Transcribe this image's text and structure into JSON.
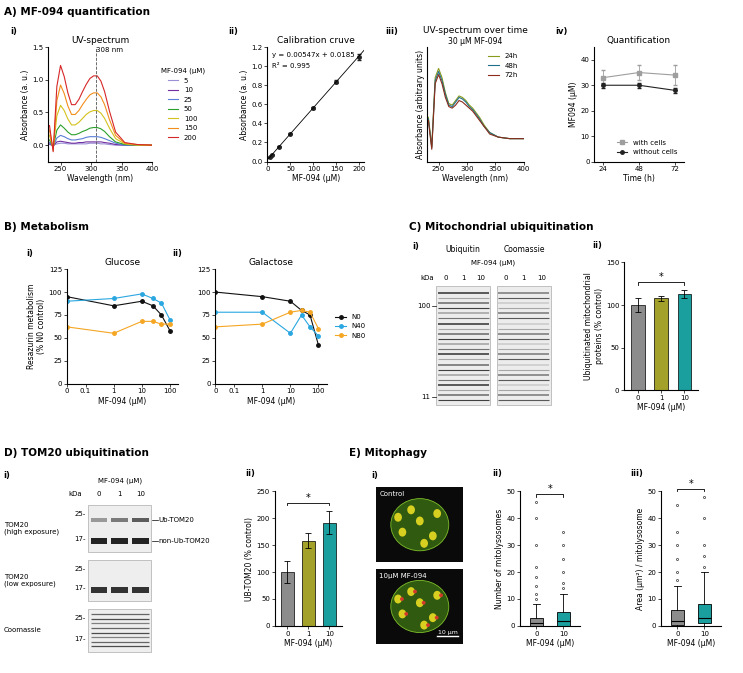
{
  "headings": [
    "A) MF-094 quantification",
    "B) Metabolism",
    "C) Mitochondrial ubiquitination",
    "D) TOM20 ubiquitination",
    "E) Mitophagy"
  ],
  "chart_data": [
    {
      "panel": "i)",
      "type": "line",
      "title": "UV-spectrum",
      "xlabel": "Wavelength (nm)",
      "ylabel": "Absorbance (a. u.)",
      "x": [
        232,
        238,
        244,
        250,
        256,
        262,
        268,
        274,
        280,
        286,
        292,
        298,
        304,
        310,
        316,
        322,
        330,
        340,
        355,
        375,
        400
      ],
      "xlim": [
        230,
        400
      ],
      "xticks": [
        250,
        300,
        350,
        400
      ],
      "ylim": [
        -0.25,
        1.5
      ],
      "yticks": [
        {
          "value": 0,
          "label": "0.0"
        },
        0.5,
        {
          "value": 1,
          "label": "1.0"
        },
        1.5
      ],
      "legend": "right",
      "legend_title": "MF-094 (µM)",
      "annotations": [
        {
          "x": 308,
          "text": "308 nm"
        }
      ],
      "series": [
        {
          "name": "5",
          "color": "#9b8fd6",
          "values": [
            0.01,
            0.0,
            0.02,
            0.03,
            0.03,
            0.02,
            0.02,
            0.02,
            0.02,
            0.02,
            0.02,
            0.03,
            0.03,
            0.03,
            0.02,
            0.02,
            0.01,
            0.0,
            0.0,
            0.0,
            0.0
          ]
        },
        {
          "name": "10",
          "color": "#7030a0",
          "values": [
            0.02,
            -0.01,
            0.05,
            0.06,
            0.05,
            0.04,
            0.03,
            0.03,
            0.04,
            0.04,
            0.05,
            0.05,
            0.05,
            0.05,
            0.05,
            0.04,
            0.03,
            0.01,
            0.0,
            0.0,
            0.0
          ]
        },
        {
          "name": "25",
          "color": "#5b7fd6",
          "values": [
            0.04,
            -0.02,
            0.11,
            0.15,
            0.13,
            0.1,
            0.08,
            0.08,
            0.09,
            0.1,
            0.12,
            0.13,
            0.13,
            0.13,
            0.12,
            0.1,
            0.07,
            0.03,
            0.0,
            0.0,
            0.0
          ]
        },
        {
          "name": "50",
          "color": "#2ca02c",
          "values": [
            0.08,
            -0.03,
            0.23,
            0.31,
            0.26,
            0.2,
            0.16,
            0.16,
            0.18,
            0.21,
            0.23,
            0.26,
            0.27,
            0.27,
            0.25,
            0.21,
            0.13,
            0.05,
            0.01,
            0.0,
            0.0
          ]
        },
        {
          "name": "100",
          "color": "#d4c21c",
          "values": [
            0.15,
            -0.05,
            0.45,
            0.61,
            0.53,
            0.4,
            0.31,
            0.31,
            0.35,
            0.41,
            0.47,
            0.51,
            0.53,
            0.53,
            0.49,
            0.41,
            0.26,
            0.1,
            0.02,
            0.0,
            0.0
          ]
        },
        {
          "name": "150",
          "color": "#f28e1c",
          "values": [
            0.23,
            -0.08,
            0.68,
            0.92,
            0.79,
            0.6,
            0.47,
            0.47,
            0.53,
            0.62,
            0.7,
            0.77,
            0.8,
            0.8,
            0.74,
            0.62,
            0.39,
            0.15,
            0.03,
            0.01,
            0.0
          ]
        },
        {
          "name": "200",
          "color": "#d62728",
          "values": [
            0.3,
            -0.1,
            0.9,
            1.22,
            1.05,
            0.8,
            0.62,
            0.62,
            0.7,
            0.82,
            0.93,
            1.02,
            1.06,
            1.06,
            0.98,
            0.82,
            0.52,
            0.2,
            0.04,
            0.01,
            0.0
          ]
        }
      ]
    },
    {
      "panel": "ii)",
      "type": "scatter",
      "title": "Calibration cruve",
      "xlabel": "MF-094 (µM)",
      "ylabel": "Absorbance (a. u.)",
      "x": [
        5,
        10,
        25,
        50,
        100,
        150,
        200
      ],
      "xlim": [
        0,
        210
      ],
      "xticks": [
        0,
        50,
        100,
        150,
        200
      ],
      "ylim": [
        0,
        1.2
      ],
      "yticks": [
        {
          "value": 0,
          "label": "0.0"
        },
        0.2,
        0.4,
        0.6,
        0.8,
        {
          "value": 1,
          "label": "1.0"
        },
        1.2
      ],
      "fit": {
        "slope": 0.00547,
        "intercept": 0.0185
      },
      "annotations": [
        {
          "text": "y = 0.00547x + 0.0185"
        },
        {
          "text": "R² = 0.995"
        }
      ],
      "series": [
        {
          "color": "#222222",
          "marker": "circle",
          "values": [
            0.046,
            0.073,
            0.155,
            0.292,
            0.566,
            0.839,
            1.1
          ],
          "errors": [
            0.002,
            0.003,
            0.005,
            0.006,
            0.01,
            0.012,
            0.03
          ]
        }
      ]
    },
    {
      "panel": "iii)",
      "type": "line",
      "title": "UV-spectrum over time",
      "subtitle": "30 µM MF-094",
      "xlabel": "Wavelength (nm)",
      "ylabel": "Absorbance (arbitrary units)",
      "tick_labels": "x",
      "x": [
        232,
        238,
        244,
        250,
        256,
        262,
        268,
        274,
        280,
        286,
        292,
        298,
        304,
        310,
        316,
        322,
        330,
        340,
        355,
        375,
        400
      ],
      "xlim": [
        230,
        400
      ],
      "xticks": [
        250,
        300,
        350,
        400
      ],
      "ylim": [
        -0.15,
        0.6
      ],
      "legend": "upper right",
      "series": [
        {
          "name": "24h",
          "color": "#8a9a1b",
          "values": [
            0.14,
            -0.05,
            0.4,
            0.46,
            0.4,
            0.3,
            0.23,
            0.22,
            0.25,
            0.28,
            0.27,
            0.25,
            0.22,
            0.2,
            0.17,
            0.14,
            0.09,
            0.04,
            0.01,
            0.0,
            0.0
          ]
        },
        {
          "name": "48h",
          "color": "#1f6f8b",
          "values": [
            0.13,
            -0.06,
            0.38,
            0.44,
            0.38,
            0.29,
            0.22,
            0.21,
            0.24,
            0.27,
            0.26,
            0.24,
            0.21,
            0.19,
            0.16,
            0.13,
            0.08,
            0.04,
            0.01,
            0.0,
            0.0
          ]
        },
        {
          "name": "72h",
          "color": "#8b2d1a",
          "values": [
            0.12,
            -0.07,
            0.36,
            0.42,
            0.36,
            0.27,
            0.21,
            0.2,
            0.22,
            0.25,
            0.24,
            0.22,
            0.2,
            0.18,
            0.15,
            0.12,
            0.08,
            0.03,
            0.01,
            0.0,
            0.0
          ]
        }
      ]
    },
    {
      "panel": "iv)",
      "type": "line",
      "title": "Quantification",
      "xlabel": "Time (h)",
      "ylabel": "MF094 (µM)",
      "x": [
        24,
        48,
        72
      ],
      "xlim": [
        18,
        78
      ],
      "xticks": [
        24,
        48,
        72
      ],
      "ylim": [
        0,
        45
      ],
      "yticks": [
        0,
        10,
        20,
        30,
        40
      ],
      "legend": "lower right",
      "series": [
        {
          "name": "with cells",
          "color": "#9e9e9e",
          "marker": "square",
          "values": [
            33,
            35,
            34
          ],
          "errors": [
            3,
            3,
            4
          ]
        },
        {
          "name": "without cells",
          "color": "#222222",
          "marker": "circle",
          "values": [
            30,
            30,
            28
          ],
          "errors": [
            1,
            1,
            1
          ]
        }
      ]
    },
    {
      "panel": "i)",
      "type": "line",
      "title": "Glucose",
      "xlabel": "MF-094 (µM)",
      "ylabel": "Resazurin metabolism\n(% N0 control)",
      "log": "x",
      "x": [
        0,
        1,
        10,
        25,
        50,
        100
      ],
      "xlim": [
        0,
        200
      ],
      "xticks": [
        0,
        0.1,
        1,
        10,
        100
      ],
      "ylim": [
        0,
        125
      ],
      "yticks": [
        0,
        25,
        50,
        75,
        100,
        125
      ],
      "series": [
        {
          "name": "N0",
          "color": "#111111",
          "marker": "circle",
          "values": [
            95,
            85,
            90,
            85,
            75,
            58
          ]
        },
        {
          "name": "N40",
          "color": "#2aa7e0",
          "marker": "circle",
          "values": [
            90,
            93,
            98,
            93,
            88,
            70
          ]
        },
        {
          "name": "N80",
          "color": "#f5a623",
          "marker": "circle",
          "values": [
            62,
            55,
            68,
            68,
            65,
            65
          ]
        }
      ]
    },
    {
      "panel": "ii)",
      "type": "line",
      "title": "Galactose",
      "xlabel": "MF-094 (µM)",
      "log": "x",
      "x": [
        0,
        1,
        10,
        25,
        50,
        100
      ],
      "xlim": [
        0,
        200
      ],
      "xticks": [
        0,
        0.1,
        1,
        10,
        100
      ],
      "ylim": [
        0,
        125
      ],
      "yticks": [
        0,
        25,
        50,
        75,
        100,
        125
      ],
      "legend": "right",
      "series": [
        {
          "name": "N0",
          "color": "#111111",
          "marker": "circle",
          "values": [
            100,
            95,
            90,
            80,
            75,
            42
          ]
        },
        {
          "name": "N40",
          "color": "#2aa7e0",
          "marker": "circle",
          "values": [
            78,
            78,
            55,
            75,
            62,
            52
          ]
        },
        {
          "name": "N80",
          "color": "#f5a623",
          "marker": "circle",
          "values": [
            62,
            65,
            78,
            80,
            78,
            60
          ]
        }
      ]
    },
    {
      "panel": "ii)",
      "type": "bar",
      "xlabel": "MF-094 (µM)",
      "ylabel": "Ubiquitinated mitochondrial\nproteins (% control)",
      "categories": [
        "0",
        "1",
        "10"
      ],
      "values": [
        100,
        108,
        113
      ],
      "errors": [
        8,
        3,
        5
      ],
      "colors": [
        "#8c8c8c",
        "#a3a12a",
        "#1b9e9e"
      ],
      "ylim": [
        0,
        150
      ],
      "yticks": [
        0,
        50,
        100,
        150
      ],
      "significance": [
        {
          "between": [
            "0",
            "10"
          ],
          "label": "*"
        }
      ]
    },
    {
      "panel": "ii)",
      "type": "bar",
      "xlabel": "MF-094 (µM)",
      "ylabel": "UB-TOM20 (% control)",
      "categories": [
        "0",
        "1",
        "10"
      ],
      "values": [
        100,
        158,
        192
      ],
      "errors": [
        20,
        14,
        22
      ],
      "colors": [
        "#8c8c8c",
        "#a3a12a",
        "#1b9e9e"
      ],
      "ylim": [
        0,
        250
      ],
      "yticks": [
        0,
        50,
        100,
        150,
        200,
        250
      ],
      "significance": [
        {
          "between": [
            "0",
            "10"
          ],
          "label": "*"
        }
      ]
    },
    {
      "panel": "ii)",
      "type": "box",
      "xlabel": "MF-094 (µM)",
      "ylabel": "Number of mitolysosomes",
      "categories": [
        "0",
        "10"
      ],
      "colors": [
        "#8c8c8c",
        "#1b9e9e"
      ],
      "boxes": [
        {
          "whislo": 0,
          "q1": 0,
          "med": 1,
          "q3": 3,
          "whishi": 8,
          "fliers": [
            10,
            12,
            15,
            18,
            22,
            30,
            40,
            46
          ]
        },
        {
          "whislo": 0,
          "q1": 0,
          "med": 2,
          "q3": 5,
          "whishi": 12,
          "fliers": [
            14,
            16,
            20,
            25,
            30,
            35
          ]
        }
      ],
      "ylim": [
        0,
        50
      ],
      "yticks": [
        0,
        10,
        20,
        30,
        40,
        50
      ],
      "significance": [
        {
          "between": [
            "0",
            "10"
          ],
          "label": "*"
        }
      ]
    },
    {
      "panel": "iii)",
      "type": "box",
      "xlabel": "MF-094 (µM)",
      "ylabel": "Area (µm²) / mitolysosome",
      "categories": [
        "0",
        "10"
      ],
      "colors": [
        "#8c8c8c",
        "#1b9e9e"
      ],
      "boxes": [
        {
          "whislo": 0,
          "q1": 0.5,
          "med": 2,
          "q3": 6,
          "whishi": 15,
          "fliers": [
            17,
            20,
            25,
            30,
            35,
            45
          ]
        },
        {
          "whislo": 0,
          "q1": 1,
          "med": 3,
          "q3": 8,
          "whishi": 20,
          "fliers": [
            22,
            26,
            30,
            40,
            48
          ]
        }
      ],
      "ylim": [
        0,
        50
      ],
      "yticks": [
        0,
        10,
        20,
        30,
        40,
        50
      ],
      "significance": [
        {
          "between": [
            "0",
            "10"
          ],
          "label": "*"
        }
      ]
    }
  ],
  "blot_C": {
    "panel": "i)",
    "lane_header": "MF-094 (µM)",
    "lanes": [
      "0",
      "1",
      "10"
    ],
    "panels": [
      "Ubiquitin",
      "Coomassie"
    ],
    "mw_unit": "kDa",
    "mw_markers": [
      "100",
      "11"
    ]
  },
  "blot_D": {
    "panel": "i)",
    "lane_header": "MF-094 (µM)",
    "lanes": [
      "0",
      "1",
      "10"
    ],
    "mw_unit": "kDa",
    "rows": [
      {
        "label": "TOM20\n(high exposure)",
        "mw_markers": [
          "25-",
          "17-"
        ],
        "bands": [
          "Ub-TOM20",
          "non-Ub-TOM20"
        ]
      },
      {
        "label": "TOM20\n(low exposure)",
        "mw_markers": [
          "25-",
          "17-"
        ]
      },
      {
        "label": "Coomassie",
        "mw_markers": [
          "25-",
          "17-"
        ]
      }
    ]
  },
  "image_E": {
    "panel": "i)",
    "panels": [
      "Control",
      "10µM MF-094"
    ],
    "scale_bar": "10 µm"
  }
}
